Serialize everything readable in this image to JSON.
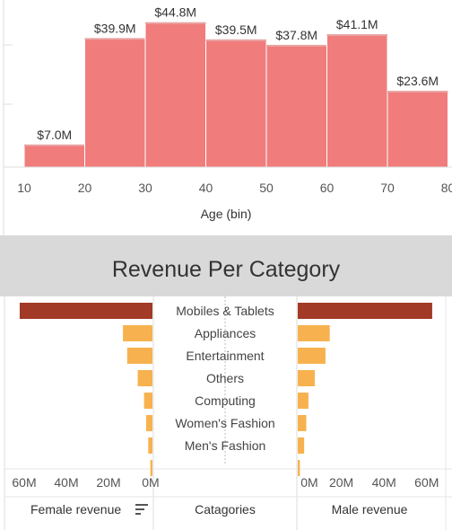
{
  "histogram": {
    "chart_data": {
      "type": "bar",
      "xlabel": "Age (bin)",
      "ylabel": "",
      "bins": [
        {
          "from": 10,
          "to": 20,
          "value": 7.0,
          "label": "$7.0M"
        },
        {
          "from": 20,
          "to": 30,
          "value": 39.9,
          "label": "$39.9M"
        },
        {
          "from": 30,
          "to": 40,
          "value": 44.8,
          "label": "$44.8M"
        },
        {
          "from": 40,
          "to": 50,
          "value": 39.5,
          "label": "$39.5M"
        },
        {
          "from": 50,
          "to": 60,
          "value": 37.8,
          "label": "$37.8M"
        },
        {
          "from": 60,
          "to": 70,
          "value": 41.1,
          "label": "$41.1M"
        },
        {
          "from": 70,
          "to": 80,
          "value": 23.6,
          "label": "$23.6M"
        }
      ],
      "x_ticks": [
        "10",
        "20",
        "30",
        "40",
        "50",
        "60",
        "70",
        "80"
      ],
      "xlim": [
        10,
        80
      ],
      "bar_color": "#f07c7c"
    }
  },
  "section_title": "Revenue Per Category",
  "category_chart": {
    "chart_data": {
      "type": "bar",
      "categories": [
        "Mobiles & Tablets",
        "Appliances",
        "Entertainment",
        "Others",
        "Computing",
        "Women's Fashion",
        "Men's Fashion",
        ""
      ],
      "series": [
        {
          "name": "Female revenue",
          "values": [
            63,
            14,
            12,
            7,
            4,
            3,
            2,
            1
          ]
        },
        {
          "name": "Male revenue",
          "values": [
            63,
            15,
            13,
            8,
            5,
            4,
            3,
            1
          ]
        }
      ],
      "highlight_color": "#a13a26",
      "bar_color": "#f7b24f",
      "female_ticks": [
        "60M",
        "40M",
        "20M",
        "0M"
      ],
      "male_ticks": [
        "0M",
        "20M",
        "40M",
        "60M"
      ],
      "xlim": [
        0,
        65
      ],
      "female_label": "Female revenue",
      "categories_label": "Catagories",
      "male_label": "Male revenue"
    }
  }
}
